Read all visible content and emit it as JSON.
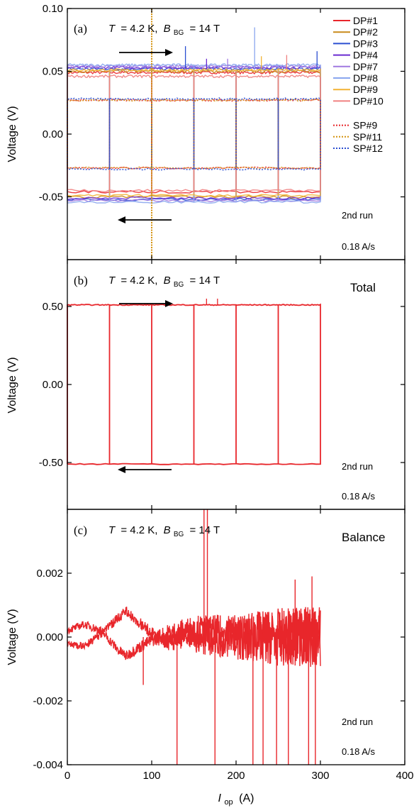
{
  "chart_data": [
    {
      "panel": "(a)",
      "type": "line",
      "condition": {
        "T": "T",
        "T_value": "= 4.2 K,",
        "B": "B",
        "B_sub": "BG",
        "B_value": "= 14 T"
      },
      "ylabel": "Voltage (V)",
      "xlim": [
        0,
        400
      ],
      "ylim": [
        -0.1,
        0.1
      ],
      "yticks": [
        -0.05,
        0.0,
        0.05,
        0.1
      ],
      "ytick_labels": [
        "-0.05",
        "0.00",
        "0.05",
        "0.10"
      ],
      "run_label": "2nd run",
      "rate_label": "0.18 A/s",
      "ramp_steps_A": [
        0,
        50,
        100,
        150,
        200,
        250,
        300
      ],
      "legend": [
        {
          "name": "DP#1",
          "color": "#e8262b",
          "style": "solid"
        },
        {
          "name": "DP#2",
          "color": "#c98a1a",
          "style": "solid"
        },
        {
          "name": "DP#3",
          "color": "#2b4fd1",
          "style": "solid"
        },
        {
          "name": "DP#4",
          "color": "#6a2bd1",
          "style": "solid"
        },
        {
          "name": "DP#7",
          "color": "#a078e0",
          "style": "solid"
        },
        {
          "name": "DP#8",
          "color": "#8aa6ee",
          "style": "solid"
        },
        {
          "name": "DP#9",
          "color": "#f2b233",
          "style": "solid"
        },
        {
          "name": "DP#10",
          "color": "#f08080",
          "style": "solid"
        },
        {
          "name": "SP#9",
          "color": "#e8262b",
          "style": "dotted"
        },
        {
          "name": "SP#11",
          "color": "#d4920f",
          "style": "dotted"
        },
        {
          "name": "SP#12",
          "color": "#2b4fd1",
          "style": "dotted"
        }
      ],
      "series": [
        {
          "name": "DP#1",
          "forward_V": 0.049,
          "reverse_V": -0.046
        },
        {
          "name": "DP#2",
          "forward_V": 0.05,
          "reverse_V": -0.05
        },
        {
          "name": "DP#3",
          "forward_V": 0.052,
          "reverse_V": -0.052
        },
        {
          "name": "DP#4",
          "forward_V": 0.053,
          "reverse_V": -0.051
        },
        {
          "name": "DP#7",
          "forward_V": 0.054,
          "reverse_V": -0.053
        },
        {
          "name": "DP#8",
          "forward_V": 0.055,
          "reverse_V": -0.054
        },
        {
          "name": "DP#9",
          "forward_V": 0.051,
          "reverse_V": -0.049
        },
        {
          "name": "DP#10",
          "forward_V": 0.046,
          "reverse_V": -0.045
        },
        {
          "name": "SP#9",
          "forward_V": 0.027,
          "reverse_V": -0.027
        },
        {
          "name": "SP#11",
          "forward_V": 0.027,
          "reverse_V": -0.027
        },
        {
          "name": "SP#12",
          "forward_V": 0.028,
          "reverse_V": -0.028
        }
      ],
      "spikes": [
        {
          "x": 140,
          "y": 0.07
        },
        {
          "x": 165,
          "y": 0.06
        },
        {
          "x": 190,
          "y": 0.06
        },
        {
          "x": 222,
          "y": 0.085
        },
        {
          "x": 230,
          "y": 0.062
        },
        {
          "x": 260,
          "y": 0.063
        },
        {
          "x": 296,
          "y": 0.066
        }
      ],
      "vertical_line": {
        "x": 100,
        "name": "SP#11"
      }
    },
    {
      "panel": "(b)",
      "type": "line",
      "condition": {
        "T": "T",
        "T_value": "= 4.2 K,",
        "B": "B",
        "B_sub": "BG",
        "B_value": "= 14 T"
      },
      "note": "Total",
      "ylabel": "Voltage (V)",
      "xlim": [
        0,
        400
      ],
      "ylim": [
        -0.8,
        0.8
      ],
      "yticks": [
        -0.5,
        0.0,
        0.5
      ],
      "ytick_labels": [
        "-0.50",
        "0.00",
        "0.50"
      ],
      "run_label": "2nd run",
      "rate_label": "0.18 A/s",
      "series": [
        {
          "name": "Total",
          "color": "#e8262b",
          "forward_V": 0.51,
          "reverse_V": -0.51
        }
      ],
      "ramp_steps_A": [
        0,
        50,
        100,
        150,
        200,
        250,
        300
      ],
      "spikes": [
        {
          "x": 165,
          "y": 0.55
        },
        {
          "x": 178,
          "y": 0.55
        }
      ]
    },
    {
      "panel": "(c)",
      "type": "line",
      "condition": {
        "T": "T",
        "T_value": "= 4.2 K,",
        "B": "B",
        "B_sub": "BG",
        "B_value": "= 14 T"
      },
      "note": "Balance",
      "ylabel": "Voltage (V)",
      "xlabel": "I",
      "xlabel_sub": "op",
      "xlabel_unit": "(A)",
      "xlim": [
        0,
        400
      ],
      "xticks": [
        0,
        100,
        200,
        300,
        400
      ],
      "xtick_labels": [
        "0",
        "100",
        "200",
        "300",
        "400"
      ],
      "ylim": [
        -0.004,
        0.004
      ],
      "yticks": [
        -0.004,
        -0.002,
        0.0,
        0.002
      ],
      "ytick_labels": [
        "-0.004",
        "-0.002",
        "0.000",
        "0.002"
      ],
      "run_label": "2nd run",
      "rate_label": "0.18 A/s",
      "series": [
        {
          "name": "Balance",
          "color": "#e8262b",
          "forward_envelope": {
            "x": [
              0,
              20,
              40,
              60,
              70,
              80,
              100,
              120,
              150,
              200,
              250,
              300
            ],
            "y": [
              0.0002,
              0.0004,
              0.0002,
              -0.0004,
              -0.0006,
              -0.0004,
              -0.0001,
              0.0001,
              0.0002,
              0.0,
              0.0,
              0.0
            ]
          },
          "reverse_envelope": {
            "x": [
              0,
              20,
              40,
              60,
              70,
              80,
              100,
              120,
              150,
              200,
              250,
              300
            ],
            "y": [
              -0.0002,
              -0.0003,
              0.0001,
              0.0006,
              0.0008,
              0.0006,
              0.0001,
              -0.0001,
              0.0,
              0.0,
              0.0,
              0.0
            ]
          },
          "noise_amplitude_by_current": {
            "x": [
              0,
              100,
              150,
              200,
              250,
              300
            ],
            "amp": [
              0.0001,
              0.0002,
              0.0005,
              0.0007,
              0.0009,
              0.001
            ]
          },
          "negative_spikes": [
            {
              "x": 90,
              "y": -0.0015
            },
            {
              "x": 130,
              "y": -0.004
            },
            {
              "x": 175,
              "y": -0.004
            },
            {
              "x": 220,
              "y": -0.004
            },
            {
              "x": 232,
              "y": -0.004
            },
            {
              "x": 248,
              "y": -0.004
            },
            {
              "x": 262,
              "y": -0.004
            },
            {
              "x": 286,
              "y": -0.004
            },
            {
              "x": 294,
              "y": -0.004
            }
          ],
          "positive_spikes": [
            {
              "x": 162,
              "y": 0.004
            },
            {
              "x": 166,
              "y": 0.004
            },
            {
              "x": 270,
              "y": 0.0018
            },
            {
              "x": 290,
              "y": 0.0019
            }
          ]
        }
      ]
    }
  ]
}
